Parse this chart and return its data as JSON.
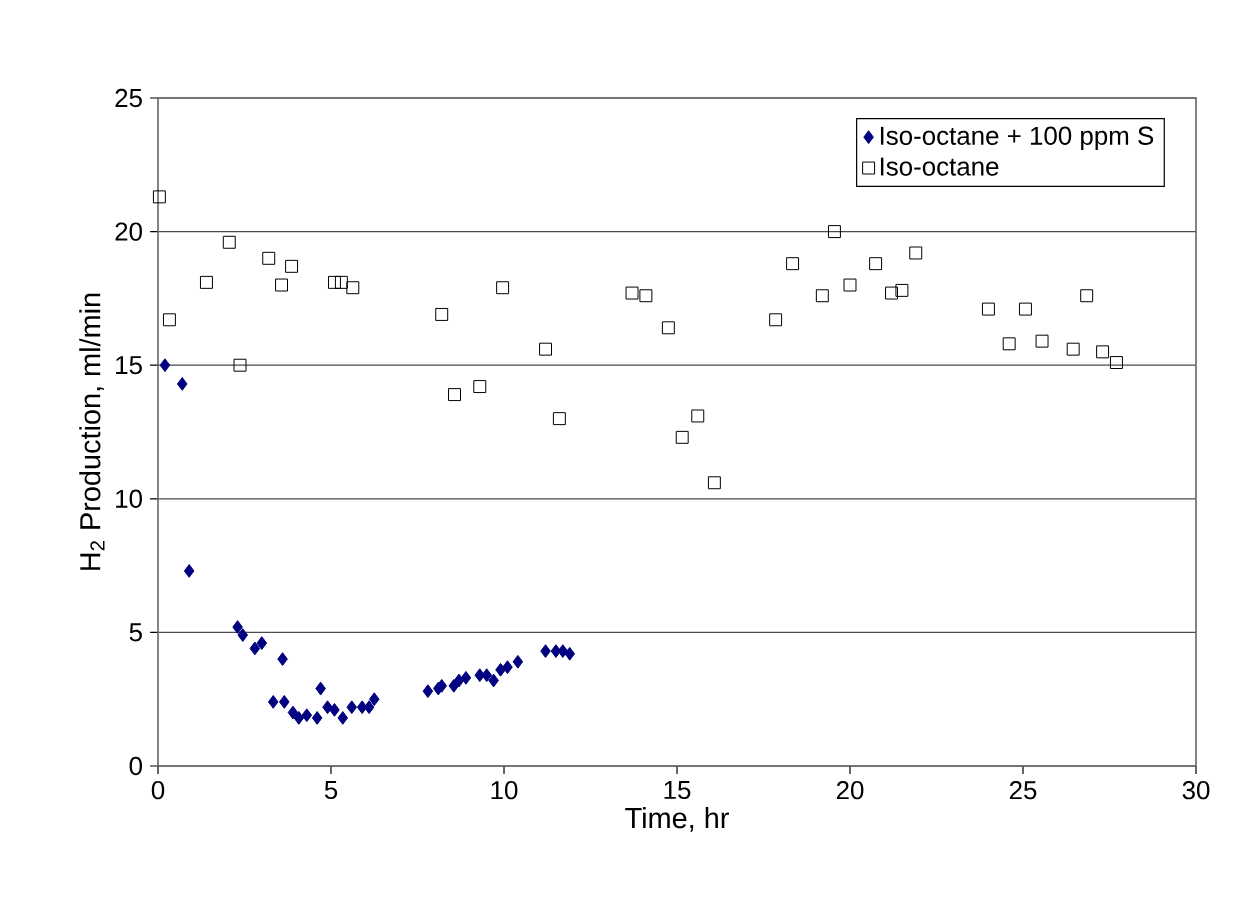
{
  "chart_data": {
    "type": "scatter",
    "xlabel": "Time, hr",
    "ylabel": "H$_{2}$ Production, ml/min",
    "xlim": [
      0,
      30
    ],
    "ylim": [
      0,
      25
    ],
    "xticks": [
      0,
      5,
      10,
      15,
      20,
      25,
      30
    ],
    "yticks": [
      0,
      5,
      10,
      15,
      20,
      25
    ],
    "grid": "y",
    "legend": "top right",
    "series": [
      {
        "name": "Iso-octane + 100 ppm S",
        "color": "#000080",
        "marker": "diamond",
        "x": [
          0.2,
          0.7,
          0.9,
          2.3,
          2.45,
          2.8,
          3.0,
          3.6,
          3.33,
          3.65,
          3.9,
          4.07,
          4.3,
          4.6,
          4.7,
          4.9,
          5.1,
          5.34,
          5.6,
          5.9,
          6.1,
          6.25,
          7.8,
          8.1,
          8.2,
          8.55,
          8.7,
          8.9,
          9.3,
          9.5,
          9.7,
          9.9,
          10.1,
          10.4,
          11.2,
          11.5,
          11.7,
          11.9
        ],
        "values": [
          15.0,
          14.3,
          7.3,
          5.2,
          4.9,
          4.4,
          4.6,
          4.0,
          2.4,
          2.4,
          2.0,
          1.8,
          1.9,
          1.8,
          2.9,
          2.2,
          2.1,
          1.8,
          2.2,
          2.2,
          2.2,
          2.5,
          2.8,
          2.9,
          3.0,
          3.0,
          3.2,
          3.3,
          3.4,
          3.4,
          3.2,
          3.6,
          3.7,
          3.9,
          4.3,
          4.3,
          4.3,
          4.2
        ]
      },
      {
        "name": "Iso-octane",
        "color": "#000000",
        "marker": "square",
        "x": [
          0.04,
          0.33,
          1.4,
          2.06,
          2.37,
          3.2,
          3.86,
          3.57,
          5.1,
          5.3,
          5.63,
          8.2,
          8.57,
          9.3,
          9.96,
          11.2,
          11.6,
          13.7,
          14.1,
          14.75,
          15.15,
          15.6,
          16.08,
          17.85,
          18.34,
          19.2,
          19.55,
          20.0,
          20.74,
          21.2,
          21.5,
          21.9,
          24.0,
          24.6,
          25.07,
          25.55,
          26.45,
          26.84,
          27.3,
          27.7
        ],
        "values": [
          21.3,
          16.7,
          18.1,
          19.6,
          15.0,
          19.0,
          18.7,
          18.0,
          18.1,
          18.1,
          17.9,
          16.9,
          13.9,
          14.2,
          17.9,
          15.6,
          13.0,
          17.7,
          17.6,
          16.4,
          12.3,
          13.1,
          10.6,
          16.7,
          18.8,
          17.6,
          20.0,
          18.0,
          18.8,
          17.7,
          17.8,
          19.2,
          17.1,
          15.8,
          17.1,
          15.9,
          15.6,
          17.6,
          15.5,
          15.1
        ]
      }
    ]
  }
}
